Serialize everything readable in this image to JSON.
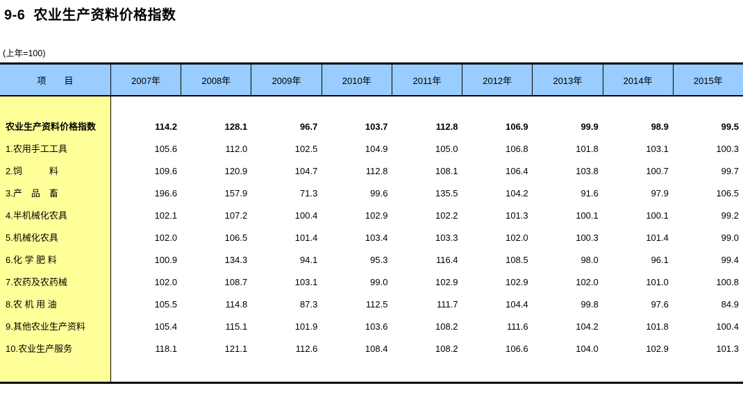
{
  "page": {
    "title": "9-6  农业生产资料价格指数",
    "subtitle": "(上年=100)"
  },
  "colors": {
    "header_bg": "#99CCFF",
    "label_column_bg": "#FFFF99",
    "border": "#000000",
    "text": "#000000"
  },
  "table": {
    "item_header": "项　　目",
    "year_headers": [
      "2007年",
      "2008年",
      "2009年",
      "2010年",
      "2011年",
      "2012年",
      "2013年",
      "2014年",
      "2015年"
    ],
    "rows": [
      {
        "label": "农业生产资料价格指数",
        "bold": true,
        "values": [
          "114.2",
          "128.1",
          "96.7",
          "103.7",
          "112.8",
          "106.9",
          "99.9",
          "98.9",
          "99.5"
        ]
      },
      {
        "label": "1.农用手工工具",
        "bold": false,
        "values": [
          "105.6",
          "112.0",
          "102.5",
          "104.9",
          "105.0",
          "106.8",
          "101.8",
          "103.1",
          "100.3"
        ]
      },
      {
        "label": "2.饲　　　料",
        "bold": false,
        "values": [
          "109.6",
          "120.9",
          "104.7",
          "112.8",
          "108.1",
          "106.4",
          "103.8",
          "100.7",
          "99.7"
        ]
      },
      {
        "label": "3.产　品　畜",
        "bold": false,
        "values": [
          "196.6",
          "157.9",
          "71.3",
          "99.6",
          "135.5",
          "104.2",
          "91.6",
          "97.9",
          "106.5"
        ]
      },
      {
        "label": "4.半机械化农具",
        "bold": false,
        "values": [
          "102.1",
          "107.2",
          "100.4",
          "102.9",
          "102.2",
          "101.3",
          "100.1",
          "100.1",
          "99.2"
        ]
      },
      {
        "label": "5.机械化农具",
        "bold": false,
        "values": [
          "102.0",
          "106.5",
          "101.4",
          "103.4",
          "103.3",
          "102.0",
          "100.3",
          "101.4",
          "99.0"
        ]
      },
      {
        "label": "6.化 学 肥 料",
        "bold": false,
        "values": [
          "100.9",
          "134.3",
          "94.1",
          "95.3",
          "116.4",
          "108.5",
          "98.0",
          "96.1",
          "99.4"
        ]
      },
      {
        "label": "7.农药及农药械",
        "bold": false,
        "values": [
          "102.0",
          "108.7",
          "103.1",
          "99.0",
          "102.9",
          "102.9",
          "102.0",
          "101.0",
          "100.8"
        ]
      },
      {
        "label": "8.农 机 用 油",
        "bold": false,
        "values": [
          "105.5",
          "114.8",
          "87.3",
          "112.5",
          "111.7",
          "104.4",
          "99.8",
          "97.6",
          "84.9"
        ]
      },
      {
        "label": "9.其他农业生产资料",
        "bold": false,
        "values": [
          "105.4",
          "115.1",
          "101.9",
          "103.6",
          "108.2",
          "111.6",
          "104.2",
          "101.8",
          "100.4"
        ]
      },
      {
        "label": "10.农业生产服务",
        "bold": false,
        "values": [
          "118.1",
          "121.1",
          "112.6",
          "108.4",
          "108.2",
          "106.6",
          "104.0",
          "102.9",
          "101.3"
        ]
      }
    ]
  },
  "chart_data": {
    "type": "table",
    "title": "9-6 农业生产资料价格指数",
    "subtitle": "(上年=100)",
    "categories": [
      "2007年",
      "2008年",
      "2009年",
      "2010年",
      "2011年",
      "2012年",
      "2013年",
      "2014年",
      "2015年"
    ],
    "series": [
      {
        "name": "农业生产资料价格指数",
        "values": [
          114.2,
          128.1,
          96.7,
          103.7,
          112.8,
          106.9,
          99.9,
          98.9,
          99.5
        ]
      },
      {
        "name": "1.农用手工工具",
        "values": [
          105.6,
          112.0,
          102.5,
          104.9,
          105.0,
          106.8,
          101.8,
          103.1,
          100.3
        ]
      },
      {
        "name": "2.饲料",
        "values": [
          109.6,
          120.9,
          104.7,
          112.8,
          108.1,
          106.4,
          103.8,
          100.7,
          99.7
        ]
      },
      {
        "name": "3.产品畜",
        "values": [
          196.6,
          157.9,
          71.3,
          99.6,
          135.5,
          104.2,
          91.6,
          97.9,
          106.5
        ]
      },
      {
        "name": "4.半机械化农具",
        "values": [
          102.1,
          107.2,
          100.4,
          102.9,
          102.2,
          101.3,
          100.1,
          100.1,
          99.2
        ]
      },
      {
        "name": "5.机械化农具",
        "values": [
          102.0,
          106.5,
          101.4,
          103.4,
          103.3,
          102.0,
          100.3,
          101.4,
          99.0
        ]
      },
      {
        "name": "6.化学肥料",
        "values": [
          100.9,
          134.3,
          94.1,
          95.3,
          116.4,
          108.5,
          98.0,
          96.1,
          99.4
        ]
      },
      {
        "name": "7.农药及农药械",
        "values": [
          102.0,
          108.7,
          103.1,
          99.0,
          102.9,
          102.9,
          102.0,
          101.0,
          100.8
        ]
      },
      {
        "name": "8.农机用油",
        "values": [
          105.5,
          114.8,
          87.3,
          112.5,
          111.7,
          104.4,
          99.8,
          97.6,
          84.9
        ]
      },
      {
        "name": "9.其他农业生产资料",
        "values": [
          105.4,
          115.1,
          101.9,
          103.6,
          108.2,
          111.6,
          104.2,
          101.8,
          100.4
        ]
      },
      {
        "name": "10.农业生产服务",
        "values": [
          118.1,
          121.1,
          112.6,
          108.4,
          108.2,
          106.6,
          104.0,
          102.9,
          101.3
        ]
      }
    ]
  }
}
